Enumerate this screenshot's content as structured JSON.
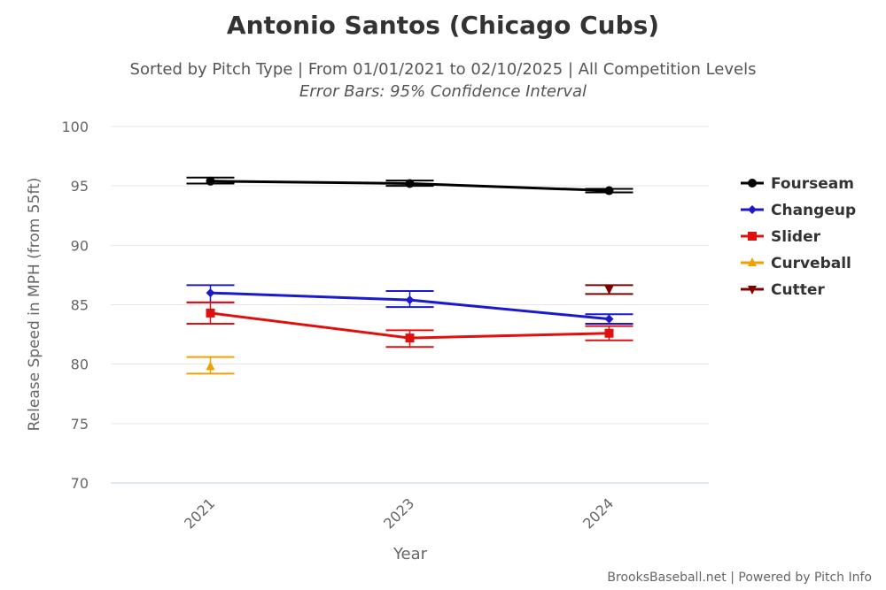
{
  "chart_data": {
    "type": "line",
    "title": "Antonio Santos (Chicago Cubs)",
    "subtitle": "Sorted by Pitch Type | From 01/01/2021 to 02/10/2025 | All Competition Levels",
    "subtitle2": "Error Bars: 95% Confidence Interval",
    "xlabel": "Year",
    "ylabel": "Release Speed in MPH (from 55ft)",
    "categories": [
      "2021",
      "2023",
      "2024"
    ],
    "ylim": [
      70,
      100
    ],
    "yticks": [
      70,
      75,
      80,
      85,
      90,
      95,
      100
    ],
    "grid": true,
    "legend_position": "right",
    "series": [
      {
        "name": "Fourseam",
        "color": "#000000",
        "marker": "circle",
        "values": [
          95.4,
          95.2,
          94.6
        ],
        "err_low": [
          95.2,
          95.0,
          94.45
        ],
        "err_high": [
          95.7,
          95.45,
          94.75
        ]
      },
      {
        "name": "Changeup",
        "color": "#1a1acc",
        "marker": "diamond",
        "values": [
          86.0,
          85.4,
          83.8
        ],
        "err_low": [
          85.2,
          84.8,
          83.4
        ],
        "err_high": [
          86.65,
          86.15,
          84.2
        ]
      },
      {
        "name": "Slider",
        "color": "#e01010",
        "marker": "square",
        "values": [
          84.3,
          82.2,
          82.6
        ],
        "err_low": [
          83.4,
          81.45,
          82.0
        ],
        "err_high": [
          85.2,
          82.85,
          83.2
        ]
      },
      {
        "name": "Curveball",
        "color": "#f0a000",
        "marker": "triangle",
        "values": [
          79.8,
          null,
          null
        ],
        "err_low": [
          79.2,
          null,
          null
        ],
        "err_high": [
          80.6,
          null,
          null
        ]
      },
      {
        "name": "Cutter",
        "color": "#800000",
        "marker": "triangle-down",
        "values": [
          null,
          null,
          86.3
        ],
        "err_low": [
          null,
          null,
          85.9
        ],
        "err_high": [
          null,
          null,
          86.65
        ]
      }
    ]
  },
  "credit": "BrooksBaseball.net | Powered by Pitch Info"
}
